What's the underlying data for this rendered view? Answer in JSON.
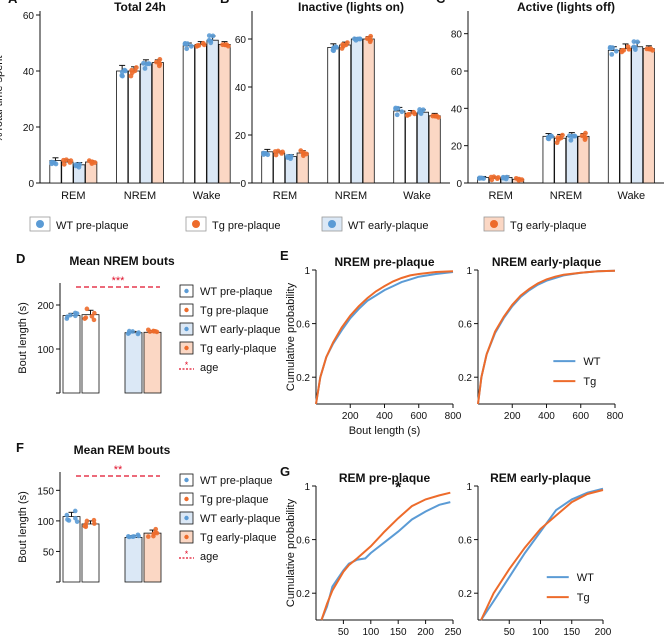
{
  "colors": {
    "wt": "#5b9bd5",
    "tg": "#ed6b2b",
    "wt_fill": "#dbe8f6",
    "tg_fill": "#fbd7c4",
    "sig": "#e0102a",
    "axis": "#111111"
  },
  "legend_main": [
    {
      "label": "WT pre-plaque",
      "group": "wt_pre"
    },
    {
      "label": "Tg pre-plaque",
      "group": "tg_pre"
    },
    {
      "label": "WT early-plaque",
      "group": "wt_early"
    },
    {
      "label": "Tg early-plaque",
      "group": "tg_early"
    }
  ],
  "chart_data": [
    {
      "id": "A",
      "type": "bar",
      "panel_label": "A",
      "title": "Total 24h",
      "ylabel": "%Total time spent",
      "ylim": [
        0,
        60
      ],
      "yticks": [
        0,
        20,
        40,
        60
      ],
      "categories": [
        "REM",
        "NREM",
        "Wake"
      ],
      "series": [
        {
          "name": "WT pre-plaque",
          "group": "wt_pre",
          "values": [
            8,
            40,
            49
          ],
          "errors": [
            1,
            2,
            1
          ]
        },
        {
          "name": "Tg pre-plaque",
          "group": "tg_pre",
          "values": [
            7.5,
            40,
            49.5
          ],
          "errors": [
            0.8,
            1.5,
            1
          ]
        },
        {
          "name": "WT early-plaque",
          "group": "wt_early",
          "values": [
            6.5,
            42.5,
            51
          ],
          "errors": [
            0.8,
            1.5,
            1.5
          ]
        },
        {
          "name": "Tg early-plaque",
          "group": "tg_early",
          "values": [
            7.5,
            43,
            49.5
          ],
          "errors": [
            0.5,
            1,
            1
          ]
        }
      ]
    },
    {
      "id": "B",
      "type": "bar",
      "panel_label": "B",
      "title": "Inactive (lights on)",
      "ylabel": "",
      "ylim": [
        0,
        70
      ],
      "yticks": [
        0,
        20,
        40,
        60
      ],
      "categories": [
        "REM",
        "NREM",
        "Wake"
      ],
      "series": [
        {
          "name": "WT pre-plaque",
          "group": "wt_pre",
          "values": [
            13,
            56.5,
            30
          ],
          "errors": [
            1,
            1.5,
            1.5
          ]
        },
        {
          "name": "Tg pre-plaque",
          "group": "tg_pre",
          "values": [
            12.5,
            57.5,
            29
          ],
          "errors": [
            0.8,
            1.2,
            1.2
          ]
        },
        {
          "name": "WT early-plaque",
          "group": "wt_early",
          "values": [
            11,
            60,
            29.5
          ],
          "errors": [
            0.8,
            0.5,
            1
          ]
        },
        {
          "name": "Tg early-plaque",
          "group": "tg_early",
          "values": [
            12.5,
            60,
            28
          ],
          "errors": [
            1,
            1,
            1
          ]
        }
      ]
    },
    {
      "id": "C",
      "type": "bar",
      "panel_label": "C",
      "title": "Active (lights off)",
      "ylabel": "",
      "ylim": [
        0,
        90
      ],
      "yticks": [
        0,
        20,
        40,
        60,
        80
      ],
      "categories": [
        "REM",
        "NREM",
        "Wake"
      ],
      "series": [
        {
          "name": "WT pre-plaque",
          "group": "wt_pre",
          "values": [
            3,
            25,
            71
          ],
          "errors": [
            0.5,
            1.5,
            2
          ]
        },
        {
          "name": "Tg pre-plaque",
          "group": "tg_pre",
          "values": [
            2.5,
            24,
            72
          ],
          "errors": [
            0.8,
            2,
            2.5
          ]
        },
        {
          "name": "WT early-plaque",
          "group": "wt_early",
          "values": [
            3,
            25,
            73
          ],
          "errors": [
            0.8,
            2,
            2.5
          ]
        },
        {
          "name": "Tg early-plaque",
          "group": "tg_early",
          "values": [
            2,
            25,
            72
          ],
          "errors": [
            0.5,
            1.5,
            1.5
          ]
        }
      ]
    },
    {
      "id": "D",
      "type": "bar",
      "panel_label": "D",
      "title": "Mean NREM bouts",
      "ylabel": "Bout length (s)",
      "ylim": [
        0,
        250
      ],
      "yticks": [
        0,
        100,
        200
      ],
      "significance": "***",
      "series": [
        {
          "name": "WT pre-plaque",
          "group": "wt_pre",
          "value": 176,
          "error": 5
        },
        {
          "name": "Tg pre-plaque",
          "group": "tg_pre",
          "value": 178,
          "error": 10
        },
        {
          "name": "WT early-plaque",
          "group": "wt_early",
          "value": 137,
          "error": 3
        },
        {
          "name": "Tg early-plaque",
          "group": "tg_early",
          "value": 138,
          "error": 4
        }
      ],
      "legend": [
        "WT pre-plaque",
        "Tg pre-plaque",
        "WT early-plaque",
        "Tg early-plaque",
        "age"
      ]
    },
    {
      "id": "F",
      "type": "bar",
      "panel_label": "F",
      "title": "Mean REM bouts",
      "ylabel": "Bout length (s)",
      "ylim": [
        0,
        180
      ],
      "yticks": [
        0,
        50,
        100,
        150
      ],
      "significance": "**",
      "series": [
        {
          "name": "WT pre-plaque",
          "group": "wt_pre",
          "value": 107,
          "error": 7
        },
        {
          "name": "Tg pre-plaque",
          "group": "tg_pre",
          "value": 95,
          "error": 5
        },
        {
          "name": "WT early-plaque",
          "group": "wt_early",
          "value": 73,
          "error": 3
        },
        {
          "name": "Tg early-plaque",
          "group": "tg_early",
          "value": 80,
          "error": 5
        }
      ],
      "legend": [
        "WT pre-plaque",
        "Tg pre-plaque",
        "WT early-plaque",
        "Tg early-plaque",
        "age"
      ]
    },
    {
      "id": "E1",
      "type": "line",
      "panel_label": "E",
      "title": "NREM pre-plaque",
      "xlabel": "Bout length (s)",
      "ylabel": "Cumulative probability",
      "xlim": [
        0,
        800
      ],
      "ylim": [
        0,
        1
      ],
      "xticks": [
        200,
        400,
        600,
        800
      ],
      "yticks": [
        0.2,
        0.6,
        1
      ],
      "series": [
        {
          "name": "WT",
          "group": "wt",
          "points": [
            [
              0,
              0
            ],
            [
              25,
              0.2
            ],
            [
              60,
              0.35
            ],
            [
              100,
              0.45
            ],
            [
              150,
              0.55
            ],
            [
              200,
              0.64
            ],
            [
              250,
              0.71
            ],
            [
              300,
              0.77
            ],
            [
              350,
              0.81
            ],
            [
              400,
              0.85
            ],
            [
              450,
              0.88
            ],
            [
              500,
              0.91
            ],
            [
              550,
              0.93
            ],
            [
              600,
              0.95
            ],
            [
              650,
              0.96
            ],
            [
              700,
              0.97
            ],
            [
              800,
              0.985
            ]
          ]
        },
        {
          "name": "Tg",
          "group": "tg",
          "points": [
            [
              0,
              0
            ],
            [
              25,
              0.2
            ],
            [
              60,
              0.35
            ],
            [
              100,
              0.46
            ],
            [
              150,
              0.57
            ],
            [
              200,
              0.66
            ],
            [
              250,
              0.73
            ],
            [
              300,
              0.79
            ],
            [
              350,
              0.84
            ],
            [
              400,
              0.88
            ],
            [
              450,
              0.915
            ],
            [
              500,
              0.94
            ],
            [
              550,
              0.96
            ],
            [
              600,
              0.97
            ],
            [
              700,
              0.985
            ],
            [
              800,
              0.99
            ]
          ]
        }
      ]
    },
    {
      "id": "E2",
      "type": "line",
      "panel_label": "",
      "title": "NREM early-plaque",
      "xlabel": "",
      "ylabel": "",
      "xlim": [
        0,
        800
      ],
      "ylim": [
        0,
        1
      ],
      "xticks": [
        200,
        400,
        600,
        800
      ],
      "yticks": [
        0.2,
        0.6,
        1
      ],
      "legend": [
        "WT",
        "Tg"
      ],
      "series": [
        {
          "name": "WT",
          "group": "wt",
          "points": [
            [
              0,
              0
            ],
            [
              20,
              0.2
            ],
            [
              50,
              0.37
            ],
            [
              100,
              0.53
            ],
            [
              150,
              0.64
            ],
            [
              200,
              0.73
            ],
            [
              250,
              0.8
            ],
            [
              300,
              0.85
            ],
            [
              350,
              0.89
            ],
            [
              400,
              0.92
            ],
            [
              450,
              0.94
            ],
            [
              500,
              0.96
            ],
            [
              600,
              0.98
            ],
            [
              700,
              0.99
            ],
            [
              800,
              0.995
            ]
          ]
        },
        {
          "name": "Tg",
          "group": "tg",
          "points": [
            [
              0,
              0
            ],
            [
              20,
              0.2
            ],
            [
              50,
              0.37
            ],
            [
              100,
              0.54
            ],
            [
              150,
              0.65
            ],
            [
              200,
              0.74
            ],
            [
              250,
              0.81
            ],
            [
              300,
              0.86
            ],
            [
              350,
              0.9
            ],
            [
              400,
              0.93
            ],
            [
              450,
              0.95
            ],
            [
              500,
              0.965
            ],
            [
              600,
              0.98
            ],
            [
              700,
              0.99
            ],
            [
              800,
              0.995
            ]
          ]
        }
      ]
    },
    {
      "id": "G1",
      "type": "line",
      "panel_label": "G",
      "title": "REM pre-plaque",
      "xlabel": "Bout length (s)",
      "ylabel": "Cumulative probability",
      "xlim": [
        0,
        250
      ],
      "ylim": [
        0,
        1
      ],
      "xticks": [
        50,
        100,
        150,
        200,
        250
      ],
      "yticks": [
        0.2,
        0.6,
        1
      ],
      "significance": "*",
      "series": [
        {
          "name": "WT",
          "group": "wt",
          "points": [
            [
              10,
              0
            ],
            [
              20,
              0.1
            ],
            [
              30,
              0.25
            ],
            [
              50,
              0.37
            ],
            [
              60,
              0.42
            ],
            [
              75,
              0.45
            ],
            [
              90,
              0.46
            ],
            [
              100,
              0.5
            ],
            [
              125,
              0.58
            ],
            [
              150,
              0.66
            ],
            [
              175,
              0.75
            ],
            [
              200,
              0.81
            ],
            [
              225,
              0.86
            ],
            [
              245,
              0.88
            ]
          ]
        },
        {
          "name": "Tg",
          "group": "tg",
          "points": [
            [
              10,
              0
            ],
            [
              20,
              0.12
            ],
            [
              30,
              0.22
            ],
            [
              50,
              0.36
            ],
            [
              60,
              0.41
            ],
            [
              75,
              0.46
            ],
            [
              100,
              0.55
            ],
            [
              125,
              0.66
            ],
            [
              150,
              0.76
            ],
            [
              175,
              0.85
            ],
            [
              200,
              0.9
            ],
            [
              225,
              0.93
            ],
            [
              245,
              0.95
            ]
          ]
        }
      ]
    },
    {
      "id": "G2",
      "type": "line",
      "panel_label": "",
      "title": "REM early-plaque",
      "xlabel": "Bout length (s)",
      "ylabel": "",
      "xlim": [
        0,
        200
      ],
      "ylim": [
        0,
        1
      ],
      "xticks": [
        50,
        100,
        150,
        200
      ],
      "yticks": [
        0.2,
        0.6,
        1
      ],
      "legend": [
        "WT",
        "Tg"
      ],
      "series": [
        {
          "name": "WT",
          "group": "wt",
          "points": [
            [
              5,
              0
            ],
            [
              25,
              0.14
            ],
            [
              50,
              0.32
            ],
            [
              75,
              0.5
            ],
            [
              100,
              0.66
            ],
            [
              125,
              0.82
            ],
            [
              150,
              0.9
            ],
            [
              175,
              0.95
            ],
            [
              200,
              0.98
            ]
          ]
        },
        {
          "name": "Tg",
          "group": "tg",
          "points": [
            [
              5,
              0
            ],
            [
              25,
              0.2
            ],
            [
              50,
              0.38
            ],
            [
              75,
              0.54
            ],
            [
              100,
              0.68
            ],
            [
              125,
              0.78
            ],
            [
              150,
              0.88
            ],
            [
              175,
              0.94
            ],
            [
              200,
              0.97
            ]
          ]
        }
      ]
    }
  ]
}
